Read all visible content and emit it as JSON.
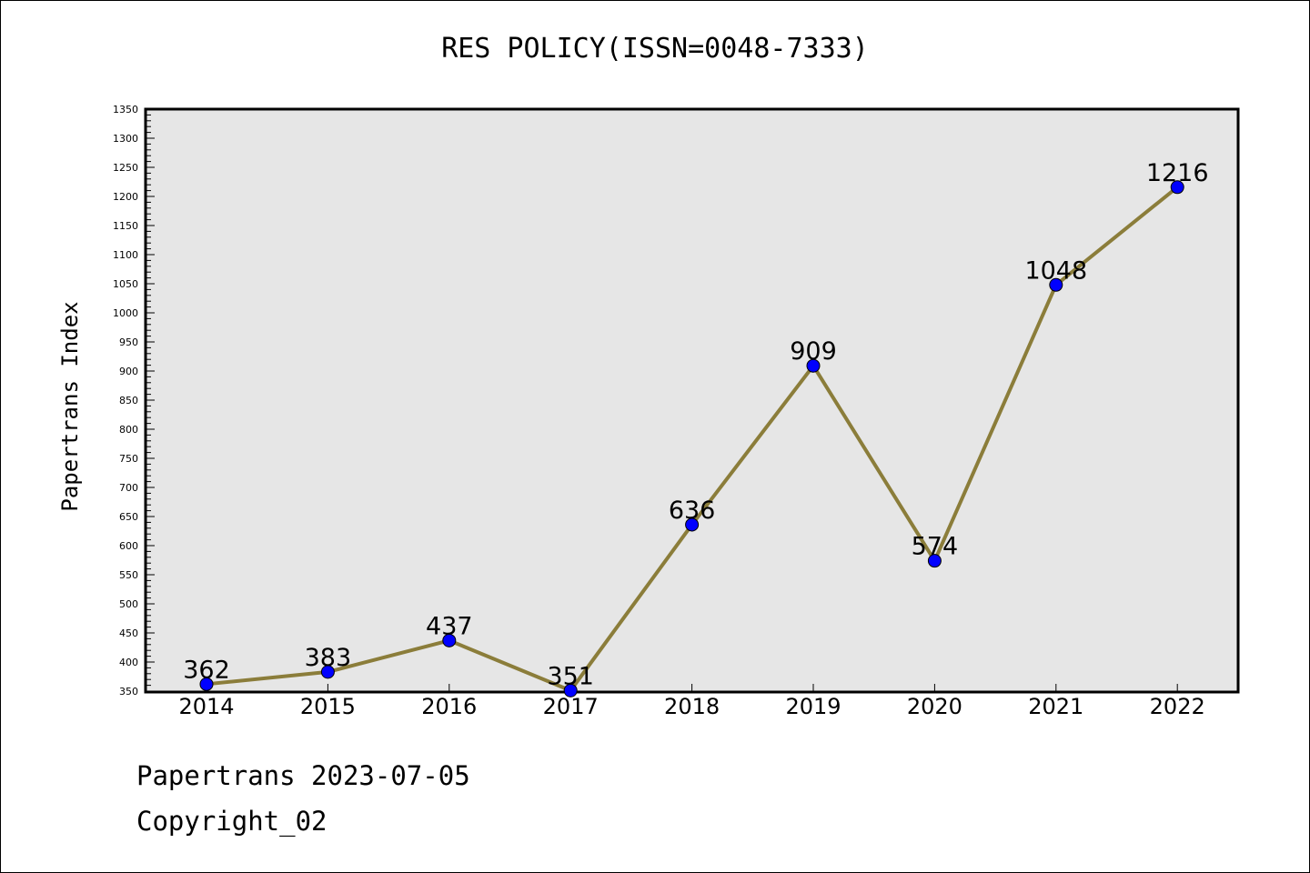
{
  "chart_data": {
    "type": "line",
    "title": "RES POLICY(ISSN=0048-7333)",
    "xlabel": "",
    "ylabel": "Papertrans Index",
    "categories": [
      "2014",
      "2015",
      "2016",
      "2017",
      "2018",
      "2019",
      "2020",
      "2021",
      "2022"
    ],
    "series": [
      {
        "values": [
          362,
          383,
          437,
          351,
          636,
          909,
          574,
          1048,
          1216
        ]
      }
    ],
    "data_labels": [
      "362",
      "383",
      "437",
      "351",
      "636",
      "909",
      "574",
      "1048",
      "1216"
    ],
    "ylim": [
      350,
      1350
    ],
    "y_ticks": [
      350,
      400,
      450,
      500,
      550,
      600,
      650,
      700,
      750,
      800,
      850,
      900,
      950,
      1000,
      1050,
      1100,
      1150,
      1200,
      1250,
      1300,
      1350
    ],
    "y_minor_step": 10,
    "grid": false,
    "legend": "none",
    "colors": {
      "line": "#8B7D3A",
      "marker": "#0000FF",
      "plot_background": "#E6E6E6"
    }
  },
  "footer": {
    "date_text": "Papertrans 2023-07-05",
    "copyright_text": "Copyright_02"
  }
}
